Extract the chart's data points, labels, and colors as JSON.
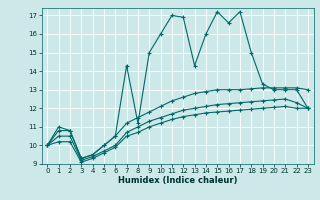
{
  "background_color": "#cce8e8",
  "grid_color": "#ffffff",
  "line_color": "#006868",
  "xlabel": "Humidex (Indice chaleur)",
  "xlim": [
    -0.5,
    23.5
  ],
  "ylim": [
    9,
    17.4
  ],
  "yticks": [
    9,
    10,
    11,
    12,
    13,
    14,
    15,
    16,
    17
  ],
  "xticks": [
    0,
    1,
    2,
    3,
    4,
    5,
    6,
    7,
    8,
    9,
    10,
    11,
    12,
    13,
    14,
    15,
    16,
    17,
    18,
    19,
    20,
    21,
    22,
    23
  ],
  "line1_x": [
    0,
    1,
    2,
    3,
    4,
    5,
    6,
    7,
    8,
    9,
    10,
    11,
    12,
    13,
    14,
    15,
    16,
    17,
    18,
    19,
    20,
    21,
    22,
    23
  ],
  "line1_y": [
    10.0,
    11.0,
    10.8,
    9.3,
    9.5,
    10.0,
    10.5,
    14.3,
    11.2,
    15.0,
    16.0,
    17.0,
    16.9,
    14.3,
    16.0,
    17.2,
    16.6,
    17.2,
    15.0,
    13.3,
    13.0,
    13.0,
    13.0,
    12.0
  ],
  "line2_x": [
    0,
    1,
    2,
    3,
    4,
    5,
    6,
    7,
    8,
    9,
    10,
    11,
    12,
    13,
    14,
    15,
    16,
    17,
    18,
    19,
    20,
    21,
    22,
    23
  ],
  "line2_y": [
    10.0,
    10.8,
    10.8,
    9.3,
    9.5,
    10.0,
    10.5,
    11.2,
    11.5,
    11.8,
    12.1,
    12.4,
    12.6,
    12.8,
    12.9,
    13.0,
    13.0,
    13.0,
    13.05,
    13.1,
    13.1,
    13.1,
    13.1,
    13.0
  ],
  "line3_x": [
    0,
    1,
    2,
    3,
    4,
    5,
    6,
    7,
    8,
    9,
    10,
    11,
    12,
    13,
    14,
    15,
    16,
    17,
    18,
    19,
    20,
    21,
    22,
    23
  ],
  "line3_y": [
    10.0,
    10.5,
    10.5,
    9.2,
    9.4,
    9.7,
    10.0,
    10.7,
    11.0,
    11.3,
    11.5,
    11.7,
    11.9,
    12.0,
    12.1,
    12.2,
    12.25,
    12.3,
    12.35,
    12.4,
    12.45,
    12.5,
    12.3,
    12.0
  ],
  "line4_x": [
    0,
    1,
    2,
    3,
    4,
    5,
    6,
    7,
    8,
    9,
    10,
    11,
    12,
    13,
    14,
    15,
    16,
    17,
    18,
    19,
    20,
    21,
    22,
    23
  ],
  "line4_y": [
    10.0,
    10.2,
    10.2,
    9.1,
    9.3,
    9.6,
    9.9,
    10.5,
    10.7,
    11.0,
    11.2,
    11.4,
    11.55,
    11.65,
    11.75,
    11.8,
    11.85,
    11.9,
    11.95,
    12.0,
    12.05,
    12.1,
    12.0,
    12.0
  ]
}
